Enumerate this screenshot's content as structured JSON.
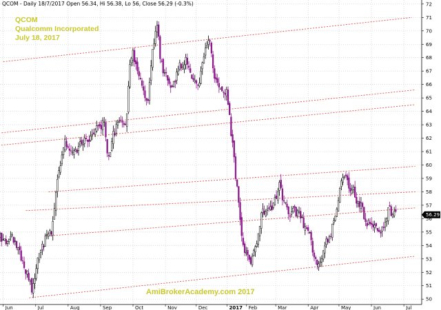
{
  "header": "QCOM - Daily 18/7/2017 Open 56.34, Hi 56.38, Lo 56, Close 56.29 (-0.3%)",
  "chart_data": {
    "type": "candlestick",
    "title": "QCOM",
    "annotations": [
      "QCOM",
      "Qualcomm Incorporated",
      "July 18, 2017",
      "AmiBrokerAcademy.com  2017"
    ],
    "x_labels": [
      "Jun",
      "Jul",
      "Aug",
      "Sep",
      "Oct",
      "Nov",
      "Dec",
      "2017",
      "Feb",
      "Mar",
      "Apr",
      "May",
      "Jun",
      "Jul"
    ],
    "x_label_pos": [
      0.1,
      1.1,
      2.1,
      3.1,
      4.1,
      5.1,
      6.05,
      7.0,
      7.6,
      8.5,
      9.5,
      10.45,
      11.45,
      12.45
    ],
    "y_ticks": [
      50,
      51,
      52,
      53,
      54,
      55,
      56,
      57,
      58,
      59,
      60,
      61,
      62,
      63,
      64,
      65,
      66,
      67,
      68,
      69,
      70,
      71,
      72
    ],
    "ylim": [
      49.6,
      72.3
    ],
    "xlim": [
      0,
      13.0
    ],
    "last_price": "56.29",
    "bullish_color": "#ffffff",
    "bearish_color": "#8b1a8b",
    "trendline_color": "#e05050",
    "path": [
      [
        0.0,
        54.6
      ],
      [
        0.2,
        54.2
      ],
      [
        0.4,
        54.6
      ],
      [
        0.55,
        53.8
      ],
      [
        0.75,
        52.3
      ],
      [
        0.9,
        51.6
      ],
      [
        1.0,
        50.6
      ],
      [
        1.1,
        52.0
      ],
      [
        1.25,
        53.8
      ],
      [
        1.45,
        54.6
      ],
      [
        1.6,
        55.0
      ],
      [
        1.75,
        58.8
      ],
      [
        1.9,
        60.4
      ],
      [
        2.0,
        61.6
      ],
      [
        2.2,
        60.9
      ],
      [
        2.5,
        61.5
      ],
      [
        2.8,
        62.0
      ],
      [
        3.0,
        62.7
      ],
      [
        3.2,
        63.2
      ],
      [
        3.35,
        60.4
      ],
      [
        3.5,
        62.4
      ],
      [
        3.7,
        63.2
      ],
      [
        3.9,
        63.1
      ],
      [
        4.0,
        67.7
      ],
      [
        4.1,
        68.5
      ],
      [
        4.25,
        66.8
      ],
      [
        4.4,
        65.8
      ],
      [
        4.55,
        64.6
      ],
      [
        4.7,
        68.6
      ],
      [
        4.85,
        70.5
      ],
      [
        4.95,
        67.7
      ],
      [
        5.1,
        66.7
      ],
      [
        5.3,
        65.6
      ],
      [
        5.5,
        67.4
      ],
      [
        5.75,
        67.8
      ],
      [
        5.9,
        66.3
      ],
      [
        6.0,
        66.4
      ],
      [
        6.1,
        65.6
      ],
      [
        6.3,
        68.3
      ],
      [
        6.45,
        69.4
      ],
      [
        6.6,
        66.7
      ],
      [
        6.75,
        66.0
      ],
      [
        6.85,
        65.3
      ],
      [
        7.0,
        65.5
      ],
      [
        7.1,
        63.1
      ],
      [
        7.3,
        58.4
      ],
      [
        7.45,
        54.5
      ],
      [
        7.6,
        53.3
      ],
      [
        7.75,
        52.7
      ],
      [
        7.9,
        54.0
      ],
      [
        8.05,
        56.4
      ],
      [
        8.25,
        56.6
      ],
      [
        8.45,
        57.0
      ],
      [
        8.6,
        58.6
      ],
      [
        8.75,
        57.3
      ],
      [
        8.9,
        56.4
      ],
      [
        9.05,
        56.6
      ],
      [
        9.25,
        56.2
      ],
      [
        9.4,
        55.4
      ],
      [
        9.55,
        54.6
      ],
      [
        9.7,
        52.8
      ],
      [
        9.85,
        52.4
      ],
      [
        10.0,
        53.8
      ],
      [
        10.2,
        55.0
      ],
      [
        10.35,
        56.0
      ],
      [
        10.5,
        58.9
      ],
      [
        10.6,
        59.4
      ],
      [
        10.75,
        58.6
      ],
      [
        10.9,
        58.0
      ],
      [
        11.0,
        57.3
      ],
      [
        11.15,
        56.8
      ],
      [
        11.3,
        55.7
      ],
      [
        11.45,
        55.4
      ],
      [
        11.6,
        55.2
      ],
      [
        11.75,
        55.0
      ],
      [
        11.9,
        56.2
      ],
      [
        12.0,
        56.6
      ],
      [
        12.2,
        56.29
      ]
    ],
    "trendlines": [
      [
        [
          0.1,
          67.7
        ],
        [
          12.7,
          71.0
        ]
      ],
      [
        [
          0.05,
          62.4
        ],
        [
          12.8,
          65.6
        ]
      ],
      [
        [
          -0.3,
          61.4
        ],
        [
          12.8,
          64.5
        ]
      ],
      [
        [
          1.5,
          58.0
        ],
        [
          12.8,
          59.9
        ]
      ],
      [
        [
          0.8,
          56.6
        ],
        [
          12.8,
          58.0
        ]
      ],
      [
        [
          1.4,
          54.7
        ],
        [
          12.8,
          56.8
        ]
      ],
      [
        [
          0.9,
          50.1
        ],
        [
          12.8,
          53.2
        ]
      ]
    ]
  }
}
